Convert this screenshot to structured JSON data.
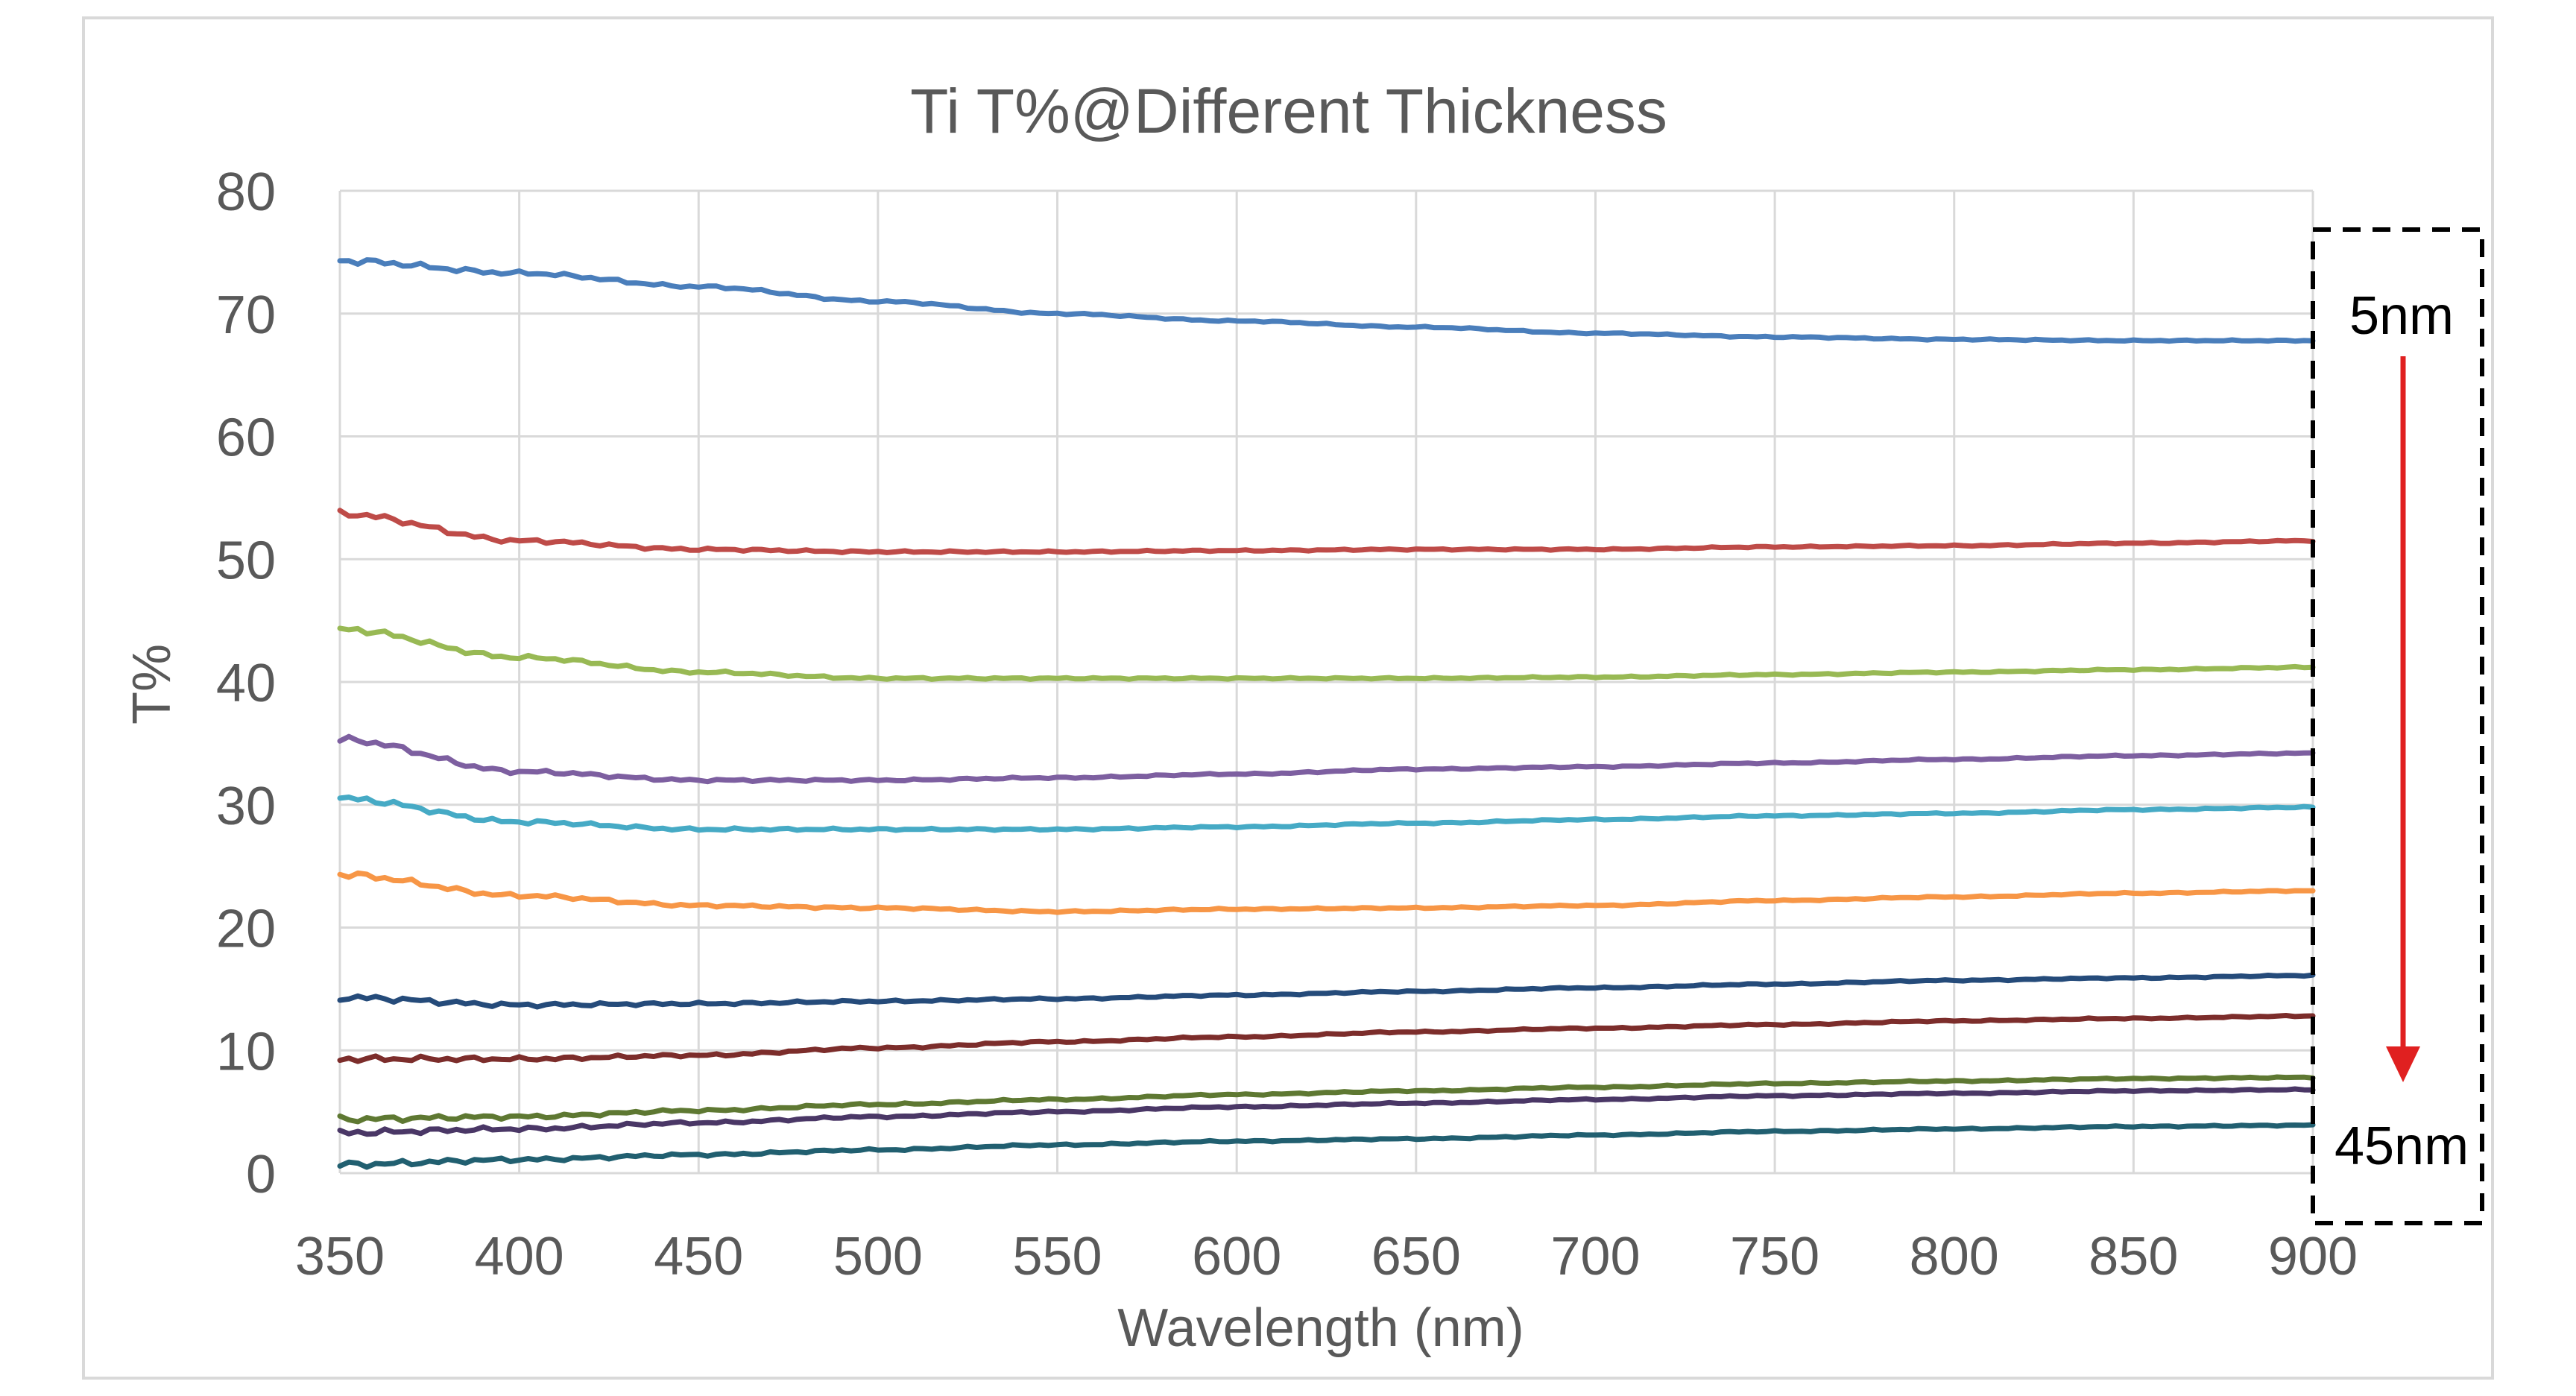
{
  "chart_data": {
    "type": "line",
    "title": "Ti T%@Different Thickness",
    "xlabel": "Wavelength (nm)",
    "ylabel": "T%",
    "xlim": [
      350,
      900
    ],
    "ylim": [
      0,
      80
    ],
    "x_ticks": [
      350,
      400,
      450,
      500,
      550,
      600,
      650,
      700,
      750,
      800,
      850,
      900
    ],
    "y_ticks": [
      0,
      10,
      20,
      30,
      40,
      50,
      60,
      70,
      80
    ],
    "grid": true,
    "legend": "none",
    "colors": [
      "#4a7ebb",
      "#be4b48",
      "#98b954",
      "#7d5fa0",
      "#46aac5",
      "#f79646",
      "#254b7a",
      "#7c2d2b",
      "#5e7832",
      "#4a3766",
      "#215f70"
    ],
    "x": [
      350,
      400,
      450,
      500,
      550,
      600,
      650,
      700,
      750,
      800,
      850,
      900
    ],
    "series": [
      {
        "values": [
          74.3,
          73.3,
          72.2,
          71.0,
          70.0,
          69.4,
          68.9,
          68.4,
          68.1,
          67.9,
          67.8,
          67.8
        ]
      },
      {
        "values": [
          53.7,
          51.5,
          50.8,
          50.6,
          50.6,
          50.7,
          50.8,
          50.8,
          51.0,
          51.1,
          51.3,
          51.5
        ]
      },
      {
        "values": [
          44.3,
          42.0,
          40.8,
          40.3,
          40.3,
          40.3,
          40.3,
          40.4,
          40.6,
          40.8,
          41.0,
          41.2
        ]
      },
      {
        "values": [
          35.3,
          32.7,
          32.0,
          32.0,
          32.2,
          32.5,
          32.9,
          33.1,
          33.4,
          33.7,
          34.0,
          34.2
        ]
      },
      {
        "values": [
          30.5,
          28.6,
          28.0,
          28.0,
          28.0,
          28.2,
          28.5,
          28.8,
          29.1,
          29.3,
          29.6,
          29.8
        ]
      },
      {
        "values": [
          24.3,
          22.6,
          21.8,
          21.6,
          21.3,
          21.5,
          21.6,
          21.8,
          22.2,
          22.5,
          22.8,
          23.0
        ]
      },
      {
        "values": [
          14.3,
          13.7,
          13.8,
          14.0,
          14.2,
          14.5,
          14.8,
          15.1,
          15.4,
          15.7,
          15.9,
          16.1
        ]
      },
      {
        "values": [
          9.3,
          9.3,
          9.6,
          10.2,
          10.7,
          11.1,
          11.5,
          11.8,
          12.1,
          12.4,
          12.6,
          12.8
        ]
      },
      {
        "values": [
          4.4,
          4.6,
          5.1,
          5.6,
          6.0,
          6.4,
          6.7,
          7.0,
          7.3,
          7.5,
          7.7,
          7.8
        ]
      },
      {
        "values": [
          3.3,
          3.6,
          4.1,
          4.6,
          5.0,
          5.4,
          5.7,
          6.0,
          6.3,
          6.5,
          6.7,
          6.8
        ]
      },
      {
        "values": [
          0.7,
          1.1,
          1.5,
          1.9,
          2.3,
          2.6,
          2.8,
          3.1,
          3.4,
          3.6,
          3.8,
          3.9
        ]
      }
    ],
    "annotations": {
      "top_label": "5nm",
      "bottom_label": "45nm",
      "arrow_color": "#e02020"
    }
  }
}
